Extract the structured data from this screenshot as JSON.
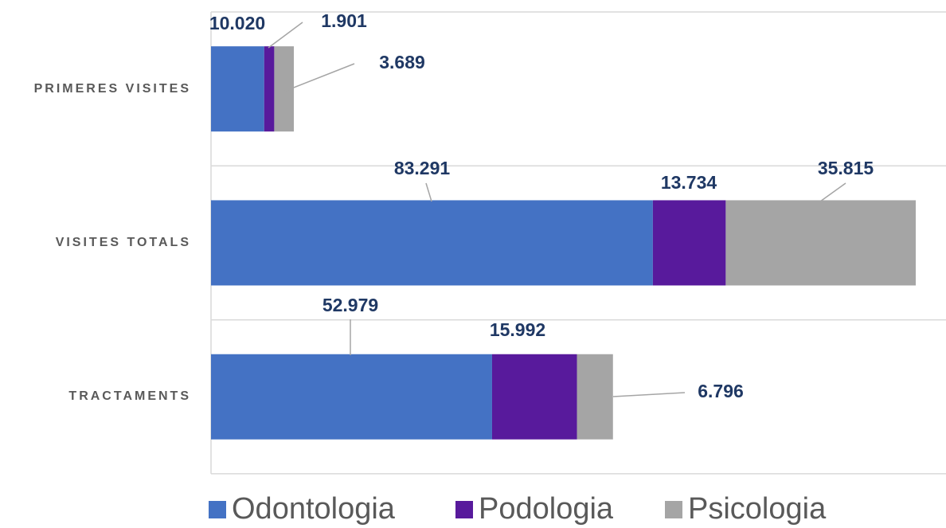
{
  "chart_data": {
    "type": "stacked-bar-horizontal",
    "categories": [
      "PRIMERES VISITES",
      "VISITES TOTALS",
      "TRACTAMENTS"
    ],
    "series": [
      {
        "name": "Odontologia",
        "color": "#4472c4",
        "values": [
          10020,
          83291,
          52979
        ],
        "value_labels": [
          "10.020",
          "83.291",
          "52.979"
        ]
      },
      {
        "name": "Podologia",
        "color": "#581a9c",
        "values": [
          1901,
          13734,
          15992
        ],
        "value_labels": [
          "1.901",
          "13.734",
          "15.992"
        ]
      },
      {
        "name": "Psicologia",
        "color": "#a5a5a5",
        "values": [
          3689,
          35815,
          6796
        ],
        "value_labels": [
          "3.689",
          "35.815",
          "6.796"
        ]
      }
    ],
    "legend": "bottom"
  }
}
